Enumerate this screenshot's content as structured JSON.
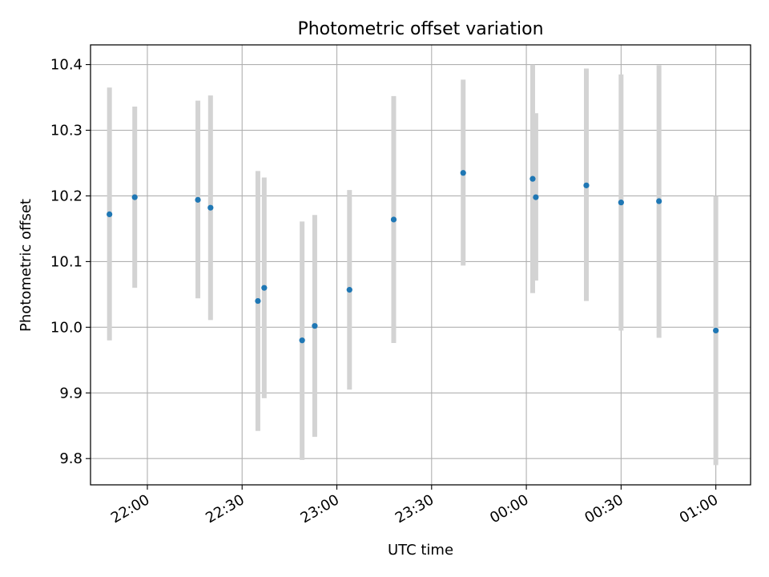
{
  "chart_data": {
    "type": "scatter",
    "title": "Photometric offset variation",
    "xlabel": "UTC time",
    "ylabel": "Photometric offset",
    "x_unit": "UTC time",
    "xlim": [
      "21:42",
      "01:11"
    ],
    "ylim": [
      9.76,
      10.43
    ],
    "x_ticks": [
      "22:00",
      "22:30",
      "23:00",
      "23:30",
      "00:00",
      "00:30",
      "01:00"
    ],
    "y_ticks": [
      "9.8",
      "9.9",
      "10.0",
      "10.1",
      "10.2",
      "10.3",
      "10.4"
    ],
    "y_tick_values": [
      9.8,
      9.9,
      10.0,
      10.1,
      10.2,
      10.3,
      10.4
    ],
    "grid": true,
    "point_color": "#1f77b4",
    "errorbar_color": "#d3d3d3",
    "points": [
      {
        "x": "21:48",
        "y": 10.172,
        "ylow": 9.98,
        "yhigh": 10.365
      },
      {
        "x": "21:56",
        "y": 10.198,
        "ylow": 10.06,
        "yhigh": 10.336
      },
      {
        "x": "22:16",
        "y": 10.194,
        "ylow": 10.044,
        "yhigh": 10.345
      },
      {
        "x": "22:20",
        "y": 10.182,
        "ylow": 10.011,
        "yhigh": 10.353
      },
      {
        "x": "22:35",
        "y": 10.04,
        "ylow": 9.842,
        "yhigh": 10.238
      },
      {
        "x": "22:37",
        "y": 10.06,
        "ylow": 9.892,
        "yhigh": 10.228
      },
      {
        "x": "22:49",
        "y": 9.98,
        "ylow": 9.798,
        "yhigh": 10.161
      },
      {
        "x": "22:53",
        "y": 10.002,
        "ylow": 9.833,
        "yhigh": 10.171
      },
      {
        "x": "23:04",
        "y": 10.057,
        "ylow": 9.905,
        "yhigh": 10.209
      },
      {
        "x": "23:18",
        "y": 10.164,
        "ylow": 9.976,
        "yhigh": 10.352
      },
      {
        "x": "23:40",
        "y": 10.235,
        "ylow": 10.094,
        "yhigh": 10.377
      },
      {
        "x": "00:02",
        "y": 10.226,
        "ylow": 10.052,
        "yhigh": 10.4
      },
      {
        "x": "00:03",
        "y": 10.198,
        "ylow": 10.071,
        "yhigh": 10.326
      },
      {
        "x": "00:19",
        "y": 10.216,
        "ylow": 10.04,
        "yhigh": 10.394
      },
      {
        "x": "00:30",
        "y": 10.19,
        "ylow": 9.995,
        "yhigh": 10.385
      },
      {
        "x": "00:42",
        "y": 10.192,
        "ylow": 9.984,
        "yhigh": 10.399
      },
      {
        "x": "01:00",
        "y": 9.995,
        "ylow": 9.79,
        "yhigh": 10.2
      }
    ]
  }
}
